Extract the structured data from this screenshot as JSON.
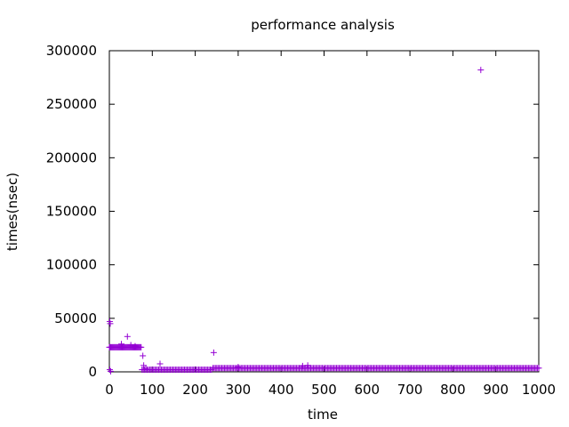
{
  "chart_data": {
    "type": "scatter",
    "title": "performance analysis",
    "xlabel": "time",
    "ylabel": "times(nsec)",
    "xlim": [
      0,
      1000
    ],
    "ylim": [
      0,
      300000
    ],
    "x_ticks": [
      0,
      100,
      200,
      300,
      400,
      500,
      600,
      700,
      800,
      900,
      1000
    ],
    "y_ticks": [
      0,
      50000,
      100000,
      150000,
      200000,
      250000,
      300000
    ],
    "grid": false,
    "marker": "+",
    "color": "#9400d3",
    "series": [
      {
        "points_description_note": "",
        "segments": [
          {
            "x_from": 0,
            "x_to": 75,
            "step": 2,
            "y": 23000
          },
          {
            "x_from": 76,
            "x_to": 240,
            "step": 3,
            "y": 2000
          },
          {
            "x_from": 241,
            "x_to": 1000,
            "step": 3,
            "y": 3500
          }
        ],
        "outliers": [
          [
            1,
            47000
          ],
          [
            2,
            45000
          ],
          [
            1,
            2000
          ],
          [
            3,
            500
          ],
          [
            28,
            26000
          ],
          [
            42,
            33000
          ],
          [
            50,
            25000
          ],
          [
            60,
            24000
          ],
          [
            78,
            15000
          ],
          [
            80,
            6000
          ],
          [
            85,
            3000
          ],
          [
            118,
            7500
          ],
          [
            243,
            18000
          ],
          [
            300,
            4500
          ],
          [
            450,
            5500
          ],
          [
            462,
            6000
          ],
          [
            865,
            282000
          ]
        ]
      }
    ]
  }
}
